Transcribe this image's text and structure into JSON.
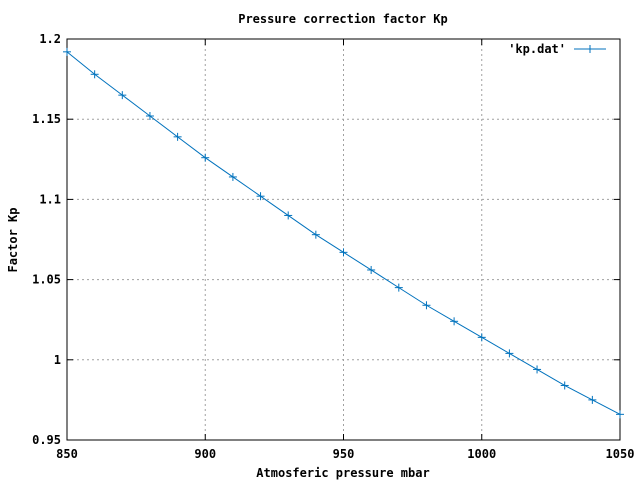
{
  "chart_data": {
    "type": "line",
    "title": "Pressure correction factor Kp",
    "xlabel": "Atmosferic pressure mbar",
    "ylabel": "Factor Kp",
    "xlim": [
      850,
      1050
    ],
    "ylim": [
      0.95,
      1.2
    ],
    "xticks": [
      850,
      900,
      950,
      1000,
      1050
    ],
    "xtick_labels": [
      "850",
      "900",
      "950",
      "1000",
      "1050"
    ],
    "yticks": [
      0.95,
      1.0,
      1.05,
      1.1,
      1.15,
      1.2
    ],
    "ytick_labels": [
      "0.95",
      "1",
      "1.05",
      "1.1",
      "1.15",
      "1.2"
    ],
    "grid": true,
    "legend_position": "top-right",
    "series": [
      {
        "name": "'kp.dat'",
        "color": "#0072bd",
        "marker": "plus",
        "x": [
          850,
          860,
          870,
          880,
          890,
          900,
          910,
          920,
          930,
          940,
          950,
          960,
          970,
          980,
          990,
          1000,
          1010,
          1020,
          1030,
          1040,
          1050
        ],
        "y": [
          1.192,
          1.178,
          1.165,
          1.152,
          1.139,
          1.126,
          1.114,
          1.102,
          1.09,
          1.078,
          1.067,
          1.056,
          1.045,
          1.034,
          1.024,
          1.014,
          1.004,
          0.994,
          0.984,
          0.975,
          0.966
        ]
      }
    ]
  }
}
